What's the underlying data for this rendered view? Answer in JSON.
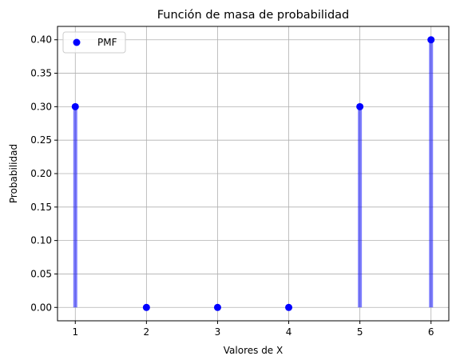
{
  "chart_data": {
    "type": "scatter",
    "title": "Función de masa de probabilidad",
    "xlabel": "Valores de X",
    "ylabel": "Probabilidad",
    "x": [
      1,
      2,
      3,
      4,
      5,
      6
    ],
    "series": [
      {
        "name": "PMF",
        "values": [
          0.3,
          0.0,
          0.0,
          0.0,
          0.3,
          0.4
        ]
      }
    ],
    "xlim": [
      0.75,
      6.25
    ],
    "ylim": [
      -0.02,
      0.42
    ],
    "xticks": [
      1,
      2,
      3,
      4,
      5,
      6
    ],
    "yticks": [
      0.0,
      0.05,
      0.1,
      0.15,
      0.2,
      0.25,
      0.3,
      0.35,
      0.4
    ],
    "xtick_labels": [
      "1",
      "2",
      "3",
      "4",
      "5",
      "6"
    ],
    "ytick_labels": [
      "0.00",
      "0.05",
      "0.10",
      "0.15",
      "0.20",
      "0.25",
      "0.30",
      "0.35",
      "0.40"
    ],
    "grid": true,
    "legend_position": "top-left",
    "marker_color": "#0000ff",
    "stem_color": "#0000ff",
    "grid_color": "#b0b0b0"
  }
}
